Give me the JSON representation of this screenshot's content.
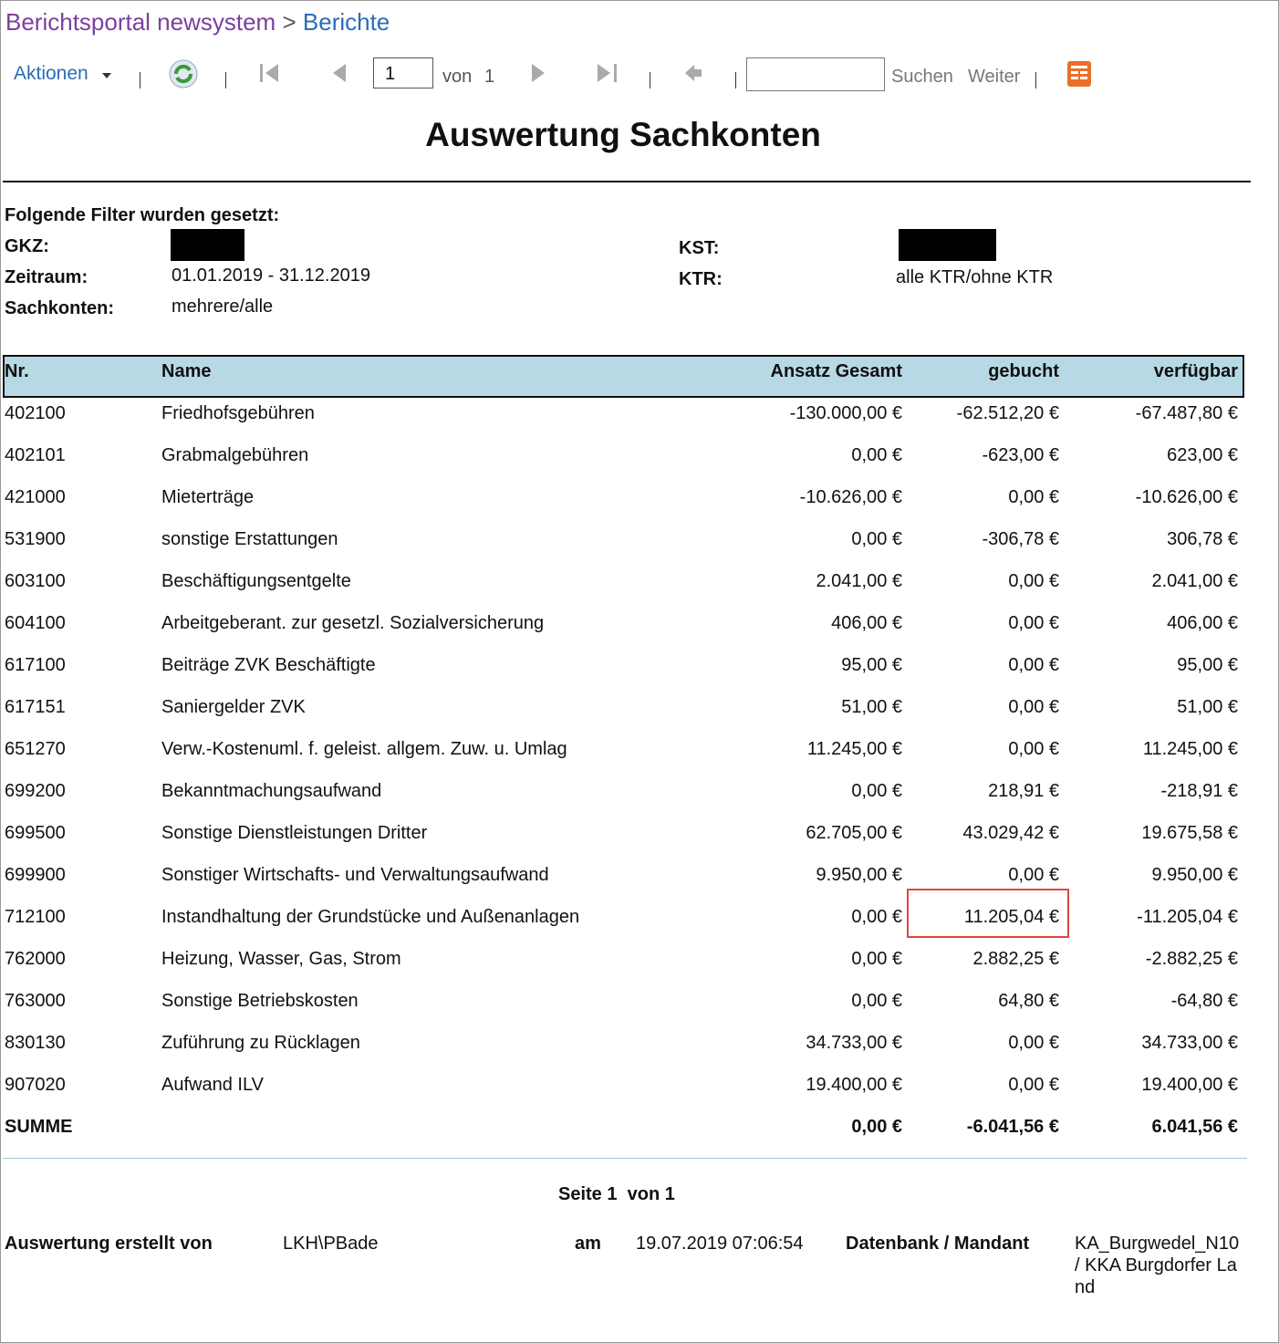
{
  "breadcrumb": {
    "portal": "Berichtsportal newsystem",
    "separator": ">",
    "current": "Berichte"
  },
  "toolbar": {
    "actions": "Aktionen",
    "page": "1",
    "of": "von",
    "total": "1",
    "search": "Suchen",
    "next": "Weiter"
  },
  "title": "Auswertung Sachkonten",
  "filters": {
    "heading": "Folgende Filter wurden gesetzt:",
    "left": [
      {
        "label": "GKZ:",
        "value": null
      },
      {
        "label": "Zeitraum:",
        "value": "01.01.2019 - 31.12.2019"
      },
      {
        "label": "Sachkonten:",
        "value": "mehrere/alle"
      }
    ],
    "right": [
      {
        "label": "KST:",
        "value": null
      },
      {
        "label": "KTR:",
        "value": "alle KTR/ohne KTR"
      }
    ]
  },
  "table": {
    "columns": [
      "Nr.",
      "Name",
      "Ansatz Gesamt",
      "gebucht",
      "verfügbar"
    ],
    "rows": [
      [
        "402100",
        "Friedhofsgebühren",
        "-130.000,00 €",
        "-62.512,20 €",
        "-67.487,80 €"
      ],
      [
        "402101",
        "Grabmalgebühren",
        "0,00 €",
        "-623,00 €",
        "623,00 €"
      ],
      [
        "421000",
        "Mieterträge",
        "-10.626,00 €",
        "0,00 €",
        "-10.626,00 €"
      ],
      [
        "531900",
        "sonstige Erstattungen",
        "0,00 €",
        "-306,78 €",
        "306,78 €"
      ],
      [
        "603100",
        "Beschäftigungsentgelte",
        "2.041,00 €",
        "0,00 €",
        "2.041,00 €"
      ],
      [
        "604100",
        "Arbeitgeberant. zur gesetzl. Sozialversicherung",
        "406,00 €",
        "0,00 €",
        "406,00 €"
      ],
      [
        "617100",
        "Beiträge ZVK Beschäftigte",
        "95,00 €",
        "0,00 €",
        "95,00 €"
      ],
      [
        "617151",
        "Saniergelder ZVK",
        "51,00 €",
        "0,00 €",
        "51,00 €"
      ],
      [
        "651270",
        "Verw.-Kostenuml. f. geleist. allgem. Zuw. u. Umlag",
        "11.245,00 €",
        "0,00 €",
        "11.245,00 €"
      ],
      [
        "699200",
        "Bekanntmachungsaufwand",
        "0,00 €",
        "218,91 €",
        "-218,91 €"
      ],
      [
        "699500",
        "Sonstige Dienstleistungen Dritter",
        "62.705,00 €",
        "43.029,42 €",
        "19.675,58 €"
      ],
      [
        "699900",
        "Sonstiger Wirtschafts- und Verwaltungsaufwand",
        "9.950,00 €",
        "0,00 €",
        "9.950,00 €"
      ],
      [
        "712100",
        "Instandhaltung der Grundstücke und Außenanlagen",
        "0,00 €",
        "11.205,04 €",
        "-11.205,04 €"
      ],
      [
        "762000",
        "Heizung, Wasser, Gas, Strom",
        "0,00 €",
        "2.882,25 €",
        "-2.882,25 €"
      ],
      [
        "763000",
        "Sonstige Betriebskosten",
        "0,00 €",
        "64,80 €",
        "-64,80 €"
      ],
      [
        "830130",
        "Zuführung zu Rücklagen",
        "34.733,00 €",
        "0,00 €",
        "34.733,00 €"
      ],
      [
        "907020",
        "Aufwand ILV",
        "19.400,00 €",
        "0,00 €",
        "19.400,00 €"
      ]
    ],
    "total": [
      "SUMME",
      "0,00 €",
      "-6.041,56 €",
      "6.041,56 €"
    ]
  },
  "footer": {
    "page_label": "Seite",
    "page": "1",
    "of": "von",
    "pages": "1",
    "created_by_label": "Auswertung erstellt von",
    "created_by": "LKH\\PBade",
    "at_label": "am",
    "at": "19.07.2019 07:06:54",
    "db_label": "Datenbank / Mandant",
    "db": "KA_Burgwedel_N10 / KKA Burgdorfer Land"
  }
}
